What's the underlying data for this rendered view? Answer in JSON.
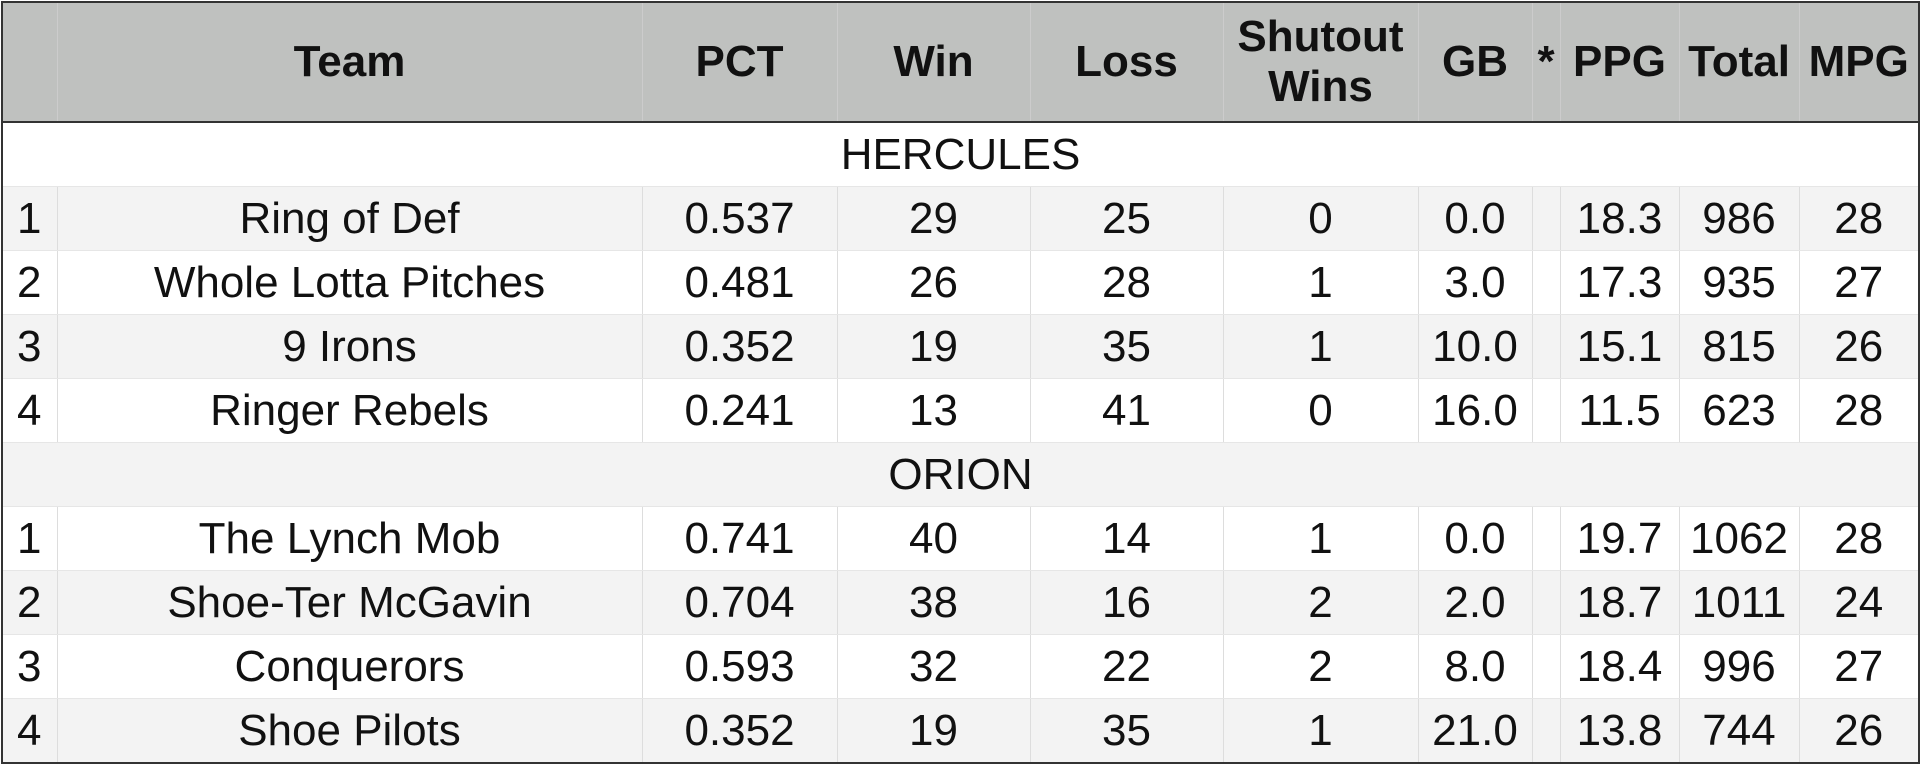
{
  "table": {
    "header": [
      "",
      "Team",
      "PCT",
      "Win",
      "Loss",
      "Shutout Wins",
      "GB",
      "*",
      "PPG",
      "Total",
      "MPG"
    ],
    "groups": [
      {
        "name": "HERCULES",
        "rows": [
          [
            "1",
            "Ring of Def",
            "0.537",
            "29",
            "25",
            "0",
            "0.0",
            "",
            "18.3",
            "986",
            "28"
          ],
          [
            "2",
            "Whole Lotta Pitches",
            "0.481",
            "26",
            "28",
            "1",
            "3.0",
            "",
            "17.3",
            "935",
            "27"
          ],
          [
            "3",
            "9 Irons",
            "0.352",
            "19",
            "35",
            "1",
            "10.0",
            "",
            "15.1",
            "815",
            "26"
          ],
          [
            "4",
            "Ringer Rebels",
            "0.241",
            "13",
            "41",
            "0",
            "16.0",
            "",
            "11.5",
            "623",
            "28"
          ]
        ]
      },
      {
        "name": "ORION",
        "rows": [
          [
            "1",
            "The Lynch Mob",
            "0.741",
            "40",
            "14",
            "1",
            "0.0",
            "",
            "19.7",
            "1062",
            "28"
          ],
          [
            "2",
            "Shoe-Ter McGavin",
            "0.704",
            "38",
            "16",
            "2",
            "2.0",
            "",
            "18.7",
            "1011",
            "24"
          ],
          [
            "3",
            "Conquerors",
            "0.593",
            "32",
            "22",
            "2",
            "8.0",
            "",
            "18.4",
            "996",
            "27"
          ],
          [
            "4",
            "Shoe Pilots",
            "0.352",
            "19",
            "35",
            "1",
            "21.0",
            "",
            "13.8",
            "744",
            "26"
          ]
        ]
      }
    ]
  }
}
